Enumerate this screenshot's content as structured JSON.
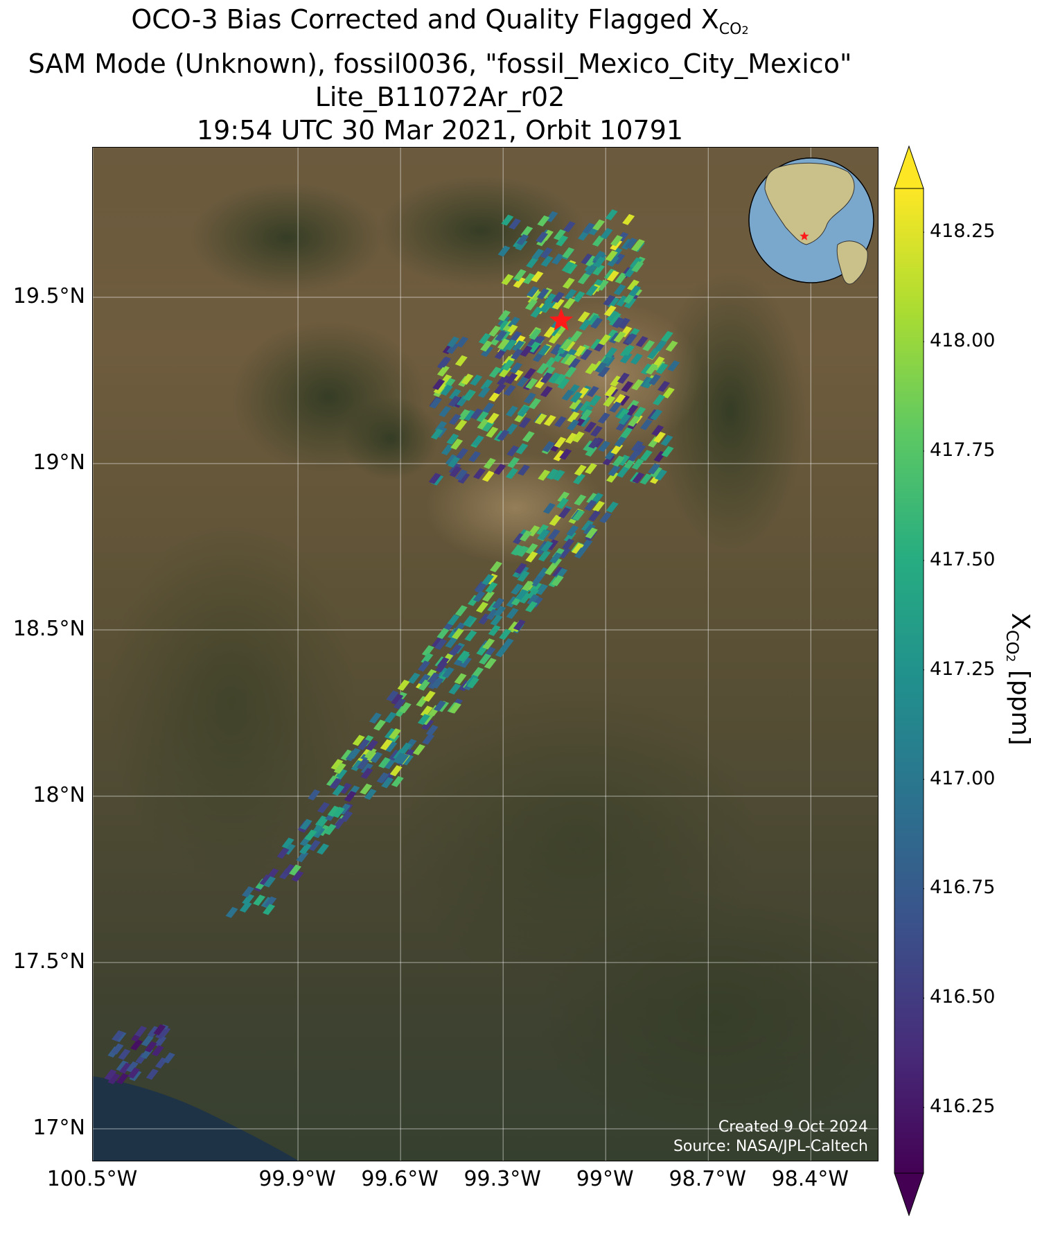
{
  "title": {
    "line1_prefix": "OCO-3 Bias Corrected and Quality Flagged X",
    "line1_subscript": "CO",
    "line1_sub2": "2",
    "line2": "SAM Mode (Unknown), fossil0036, \"fossil_Mexico_City_Mexico\"",
    "line3": "Lite_B11072Ar_r02",
    "line4": "19:54 UTC 30 Mar 2021, Orbit 10791"
  },
  "map": {
    "lat_range": [
      16.9,
      19.95
    ],
    "lon_range": [
      -100.5,
      -98.2
    ],
    "lat_ticks": [
      {
        "value": 19.5,
        "label": "19.5°N"
      },
      {
        "value": 19.0,
        "label": "19°N"
      },
      {
        "value": 18.5,
        "label": "18.5°N"
      },
      {
        "value": 18.0,
        "label": "18°N"
      },
      {
        "value": 17.5,
        "label": "17.5°N"
      },
      {
        "value": 17.0,
        "label": "17°N"
      }
    ],
    "lon_ticks": [
      {
        "value": -100.5,
        "label": "100.5°W"
      },
      {
        "value": -99.9,
        "label": "99.9°W"
      },
      {
        "value": -99.6,
        "label": "99.6°W"
      },
      {
        "value": -99.3,
        "label": "99.3°W"
      },
      {
        "value": -99.0,
        "label": "99°W"
      },
      {
        "value": -98.7,
        "label": "98.7°W"
      },
      {
        "value": -98.4,
        "label": "98.4°W"
      }
    ],
    "gridlines": true,
    "target_marker": {
      "lon": -99.13,
      "lat": 19.43,
      "color": "#ff1a1a",
      "icon": "star-icon"
    },
    "inset_globe": {
      "position": "top-right",
      "ocean_color": "#7aa7cc",
      "land_color": "#c9c08a"
    },
    "credit_line1": "Created 9 Oct 2024",
    "credit_line2": "Source: NASA/JPL-Caltech"
  },
  "colorbar": {
    "min": 416.1,
    "max": 418.35,
    "extend": "both",
    "colormap": "viridis",
    "ticks": [
      "418.25",
      "418.00",
      "417.75",
      "417.50",
      "417.25",
      "417.00",
      "416.75",
      "416.50",
      "416.25"
    ],
    "label_prefix": "X",
    "label_subscript": "CO",
    "label_sub2": "2",
    "label_suffix": " [ppm]"
  },
  "chart_data": {
    "type": "scatter",
    "title": "OCO-3 Bias Corrected and Quality Flagged XCO2",
    "xlabel": "",
    "ylabel": "",
    "xlim": [
      -100.5,
      -98.2
    ],
    "ylim": [
      16.9,
      19.95
    ],
    "value_label": "XCO2 [ppm]",
    "value_range": [
      416.1,
      418.35
    ],
    "swaths": [
      {
        "region": "north-east Mexico City basin",
        "lon_range": [
          -99.3,
          -98.9
        ],
        "lat_range": [
          19.3,
          19.75
        ],
        "typical_xco2": [
          416.5,
          418.3
        ]
      },
      {
        "region": "central basin",
        "lon_range": [
          -99.5,
          -98.8
        ],
        "lat_range": [
          18.95,
          19.4
        ],
        "typical_xco2": [
          416.3,
          418.3
        ]
      },
      {
        "region": "south swath",
        "lon_range": [
          -99.8,
          -99.0
        ],
        "lat_range": [
          18.0,
          18.9
        ],
        "typical_xco2": [
          416.4,
          418.2
        ]
      },
      {
        "region": "far south-west",
        "lon_range": [
          -100.1,
          -99.7
        ],
        "lat_range": [
          17.65,
          18.0
        ],
        "typical_xco2": [
          416.3,
          417.8
        ]
      },
      {
        "region": "coastal patch",
        "lon_range": [
          -100.45,
          -100.25
        ],
        "lat_range": [
          17.15,
          17.3
        ],
        "typical_xco2": [
          416.2,
          416.8
        ]
      }
    ]
  }
}
